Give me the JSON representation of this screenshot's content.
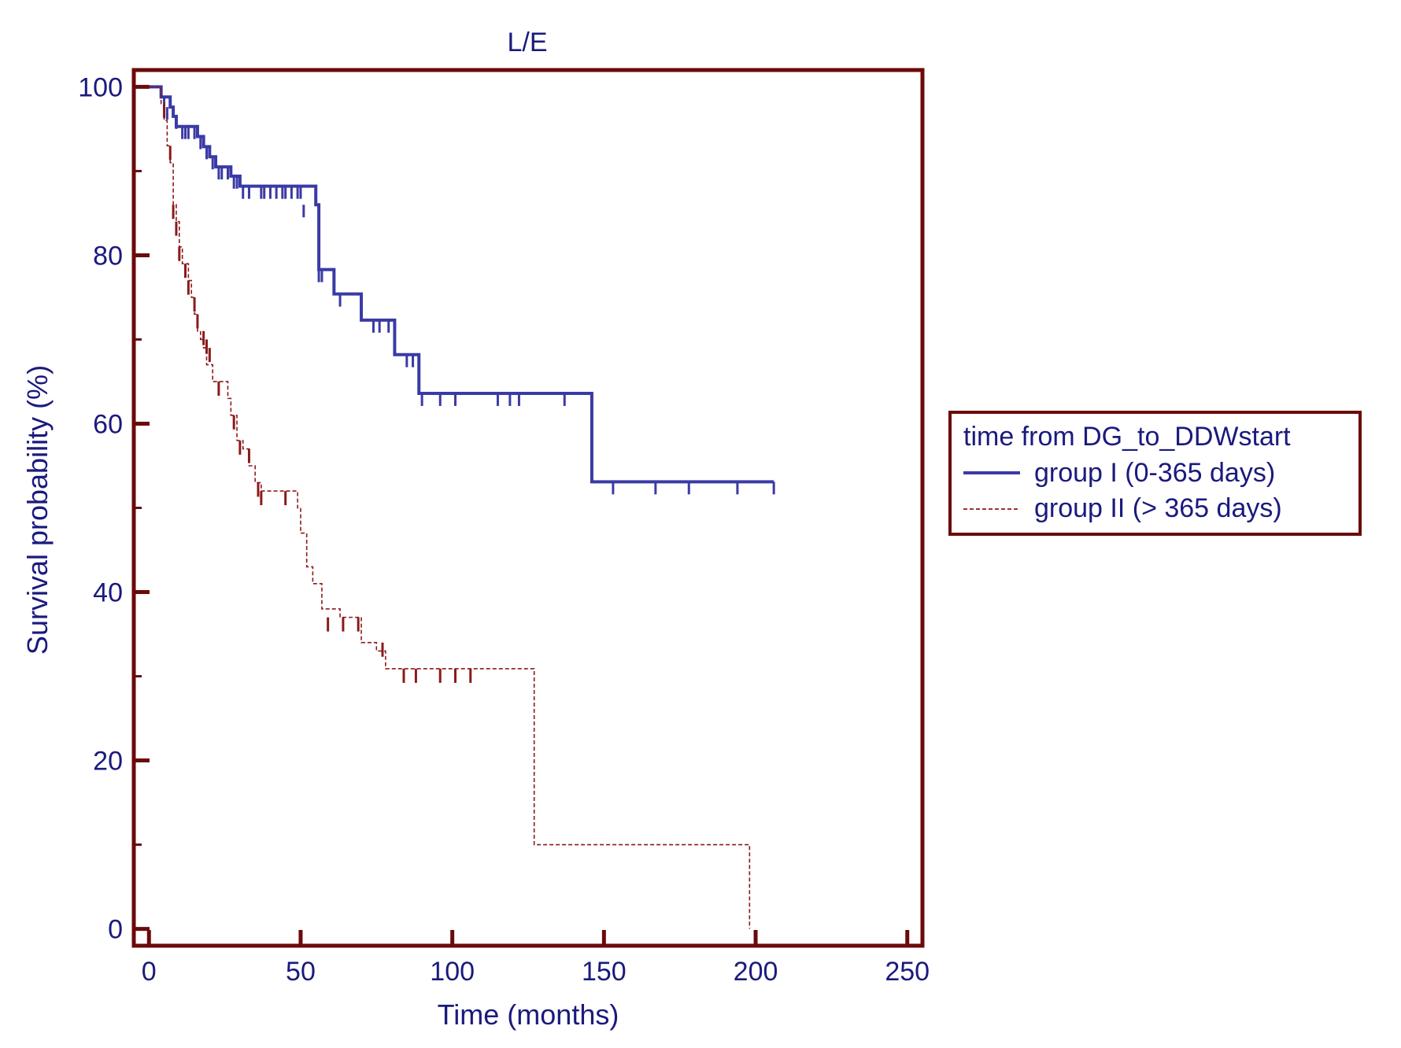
{
  "chart_data": {
    "type": "line",
    "subtype": "kaplan-meier step",
    "title": "L/E",
    "xlabel": "Time (months)",
    "ylabel": "Survival probability (%)",
    "xlim": [
      -5,
      255
    ],
    "ylim": [
      -2,
      102
    ],
    "xticks": [
      0,
      50,
      100,
      150,
      200,
      250
    ],
    "yticks": [
      0,
      20,
      40,
      60,
      80,
      100
    ],
    "yminor": [
      10,
      30,
      50,
      70,
      90
    ],
    "grid": false,
    "legend": {
      "title": "time from DG_to_DDWstart",
      "position": "right",
      "entries": [
        "group I (0-365 days)",
        "group II (> 365 days)"
      ]
    },
    "colors": {
      "frame": "#6b0a0a",
      "text": "#1a1a7e",
      "group1": "#3a3aa6",
      "group2": "#8b1a1a"
    },
    "series": [
      {
        "name": "group I (0-365 days)",
        "style": "solid",
        "steps": [
          [
            0,
            100
          ],
          [
            4,
            98.8
          ],
          [
            7,
            97.6
          ],
          [
            8,
            96.5
          ],
          [
            9,
            95.3
          ],
          [
            16,
            94.1
          ],
          [
            18,
            92.9
          ],
          [
            20,
            91.7
          ],
          [
            22,
            90.5
          ],
          [
            27,
            89.4
          ],
          [
            30,
            88.2
          ],
          [
            55,
            86
          ],
          [
            56,
            78.3
          ],
          [
            61,
            75.4
          ],
          [
            70,
            72.3
          ],
          [
            81,
            68.2
          ],
          [
            89,
            63.6
          ],
          [
            146,
            53.1
          ],
          [
            206,
            53.1
          ]
        ],
        "censored": [
          [
            5,
            98.8
          ],
          [
            6,
            97.6
          ],
          [
            9,
            96.5
          ],
          [
            11,
            95.3
          ],
          [
            12,
            95.3
          ],
          [
            13,
            95.3
          ],
          [
            15,
            95.3
          ],
          [
            17,
            94.1
          ],
          [
            19,
            92.9
          ],
          [
            21,
            91.7
          ],
          [
            23,
            90.5
          ],
          [
            24,
            90.5
          ],
          [
            26,
            90.5
          ],
          [
            28,
            89.4
          ],
          [
            29,
            89.4
          ],
          [
            31,
            88.2
          ],
          [
            33,
            88.2
          ],
          [
            37,
            88.2
          ],
          [
            38,
            88.2
          ],
          [
            40,
            88.2
          ],
          [
            42,
            88.2
          ],
          [
            44,
            88.2
          ],
          [
            45,
            88.2
          ],
          [
            47,
            88.2
          ],
          [
            49,
            88.2
          ],
          [
            50,
            88.2
          ],
          [
            51,
            86
          ],
          [
            56,
            78.3
          ],
          [
            57,
            78.3
          ],
          [
            63,
            75.4
          ],
          [
            74,
            72.3
          ],
          [
            76,
            72.3
          ],
          [
            79,
            72.3
          ],
          [
            85,
            68.2
          ],
          [
            87,
            68.2
          ],
          [
            90,
            63.6
          ],
          [
            96,
            63.6
          ],
          [
            101,
            63.6
          ],
          [
            115,
            63.6
          ],
          [
            119,
            63.6
          ],
          [
            122,
            63.6
          ],
          [
            137,
            63.6
          ],
          [
            153,
            53.1
          ],
          [
            167,
            53.1
          ],
          [
            178,
            53.1
          ],
          [
            194,
            53.1
          ],
          [
            206,
            53.1
          ]
        ]
      },
      {
        "name": "group II (> 365 days)",
        "style": "dashed",
        "steps": [
          [
            0,
            100
          ],
          [
            4,
            98
          ],
          [
            5,
            96
          ],
          [
            6,
            93
          ],
          [
            7,
            91
          ],
          [
            8,
            86
          ],
          [
            9,
            84
          ],
          [
            10,
            81
          ],
          [
            11,
            79
          ],
          [
            13,
            77
          ],
          [
            14,
            75
          ],
          [
            15,
            73
          ],
          [
            16,
            71
          ],
          [
            17,
            70
          ],
          [
            18,
            69
          ],
          [
            19,
            67
          ],
          [
            21,
            65
          ],
          [
            23,
            65
          ],
          [
            26,
            63
          ],
          [
            27,
            61
          ],
          [
            29,
            58
          ],
          [
            31,
            57
          ],
          [
            33,
            55
          ],
          [
            35,
            53
          ],
          [
            37,
            52
          ],
          [
            49,
            50
          ],
          [
            50,
            47
          ],
          [
            52,
            43
          ],
          [
            54,
            41
          ],
          [
            57,
            38
          ],
          [
            63,
            37
          ],
          [
            70,
            34
          ],
          [
            75,
            33
          ],
          [
            78,
            30.9
          ],
          [
            127,
            10
          ],
          [
            198,
            0
          ]
        ],
        "censored": [
          [
            5,
            98
          ],
          [
            7,
            93
          ],
          [
            8,
            86
          ],
          [
            9,
            84
          ],
          [
            10,
            81
          ],
          [
            12,
            79
          ],
          [
            13,
            77
          ],
          [
            15,
            75
          ],
          [
            16,
            73
          ],
          [
            18,
            71
          ],
          [
            19,
            70
          ],
          [
            20,
            69
          ],
          [
            23,
            65
          ],
          [
            28,
            61
          ],
          [
            30,
            58
          ],
          [
            33,
            57
          ],
          [
            36,
            53
          ],
          [
            37,
            52
          ],
          [
            45,
            52
          ],
          [
            59,
            37
          ],
          [
            64,
            37
          ],
          [
            69,
            37
          ],
          [
            77,
            34
          ],
          [
            84,
            30.9
          ],
          [
            88,
            30.9
          ],
          [
            96,
            30.9
          ],
          [
            101,
            30.9
          ],
          [
            106,
            30.9
          ]
        ]
      }
    ]
  }
}
